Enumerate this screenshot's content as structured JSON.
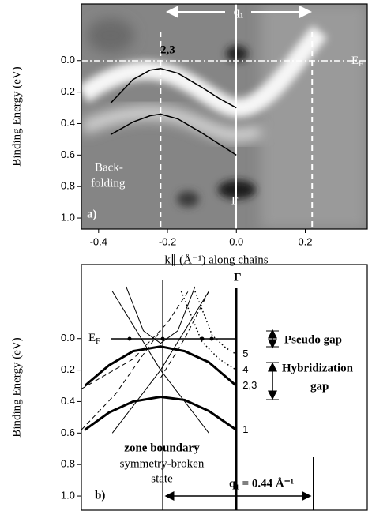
{
  "chart_data": [
    {
      "type": "line",
      "ylabel": "Binding Energy (eV)",
      "xlabel": "k∥ (Å⁻¹) along chains",
      "xlim": [
        -0.45,
        0.38
      ],
      "ylim": [
        1.07,
        -0.36
      ],
      "xticks": [
        -0.4,
        -0.2,
        {
          "value": 0,
          "label": "0.0"
        },
        0.2
      ],
      "yticks": [
        {
          "value": 0,
          "label": "0.0"
        },
        0.2,
        0.4,
        0.6,
        0.8,
        {
          "value": 1,
          "label": "1.0"
        }
      ],
      "vlines": [
        -0.22,
        0.22
      ],
      "series": [
        {
          "color": "#000000",
          "x": [
            -0.365,
            -0.3,
            -0.25,
            -0.22,
            -0.17,
            -0.1,
            -0.05,
            0
          ],
          "values": [
            0.27,
            0.12,
            0.06,
            0.05,
            0.08,
            0.17,
            0.24,
            0.3
          ]
        },
        {
          "color": "#000000",
          "x": [
            -0.365,
            -0.3,
            -0.25,
            -0.22,
            -0.17,
            -0.1,
            -0.05,
            0
          ],
          "values": [
            0.47,
            0.39,
            0.35,
            0.34,
            0.37,
            0.46,
            0.53,
            0.6
          ]
        }
      ],
      "labels": {
        "bands": "2,3",
        "q": "q₁",
        "ef": {
          "text": "E",
          "sub": "F"
        },
        "back": [
          "Back-",
          "folding"
        ],
        "gamma": "Γ",
        "panel": "a)"
      }
    },
    {
      "type": "line",
      "ylabel": "Binding Energy (eV)",
      "xlim": [
        -0.45,
        0.38
      ],
      "ylim": [
        1.09,
        -0.47
      ],
      "yticks": [
        {
          "value": 0,
          "label": "0.0"
        },
        0.2,
        0.4,
        0.6,
        0.8,
        {
          "value": 1,
          "label": "1.0"
        }
      ],
      "series": [
        {
          "name": "1",
          "style": "thick",
          "color": "#000000",
          "x": [
            -0.44,
            -0.37,
            -0.3,
            -0.22,
            -0.15,
            -0.08,
            0
          ],
          "values": [
            0.58,
            0.47,
            0.4,
            0.37,
            0.39,
            0.46,
            0.58
          ]
        },
        {
          "name": "2,3",
          "style": "thick",
          "color": "#000000",
          "x": [
            -0.44,
            -0.37,
            -0.3,
            -0.22,
            -0.15,
            -0.08,
            0
          ],
          "values": [
            0.3,
            0.17,
            0.08,
            0.05,
            0.08,
            0.15,
            0.3
          ]
        },
        {
          "name": "4",
          "style": "dotted",
          "color": "#000000",
          "x": [
            -0.16,
            -0.1,
            -0.05,
            0
          ],
          "values": [
            -0.3,
            0.02,
            0.13,
            0.2
          ]
        },
        {
          "name": "5",
          "style": "dotted",
          "color": "#000000",
          "x": [
            -0.12,
            -0.07,
            -0.03,
            0
          ],
          "values": [
            -0.3,
            -0.02,
            0.06,
            0.1
          ]
        },
        {
          "style": "thin",
          "color": "#000000",
          "x": [
            -0.36,
            -0.22,
            -0.08
          ],
          "values": [
            -0.3,
            0.2,
            0.6
          ]
        },
        {
          "style": "thin",
          "color": "#000000",
          "x": [
            -0.36,
            -0.22,
            -0.08
          ],
          "values": [
            0.6,
            0.2,
            -0.3
          ]
        },
        {
          "style": "thin",
          "color": "#000000",
          "x": [
            -0.32,
            -0.27,
            -0.22,
            -0.17,
            -0.12
          ],
          "values": [
            -0.33,
            -0.05,
            0.03,
            -0.05,
            -0.33
          ]
        },
        {
          "style": "dashed",
          "color": "#000000",
          "x": [
            -0.45,
            -0.3,
            -0.2,
            -0.14
          ],
          "values": [
            0.32,
            0.13,
            -0.1,
            -0.3
          ]
        },
        {
          "style": "dashed",
          "color": "#000000",
          "x": [
            -0.45,
            -0.35,
            -0.27,
            -0.22
          ],
          "values": [
            0.58,
            0.35,
            0.1,
            -0.05
          ]
        },
        {
          "style": "dashed",
          "color": "#000000",
          "x": [
            -0.22,
            -0.15,
            -0.08
          ],
          "values": [
            0.25,
            0,
            -0.3
          ]
        }
      ],
      "labels": {
        "ef": {
          "text": "E",
          "sub": "F"
        },
        "gamma": "Γ",
        "pseudo": "Pseudo gap",
        "hybrid": [
          "Hybridization",
          "gap"
        ],
        "zone": "zone boundary",
        "broken": [
          "symmetry-broken",
          "state"
        ],
        "q": "q₁ = 0.44 Å⁻¹",
        "panel": "b)"
      }
    }
  ]
}
